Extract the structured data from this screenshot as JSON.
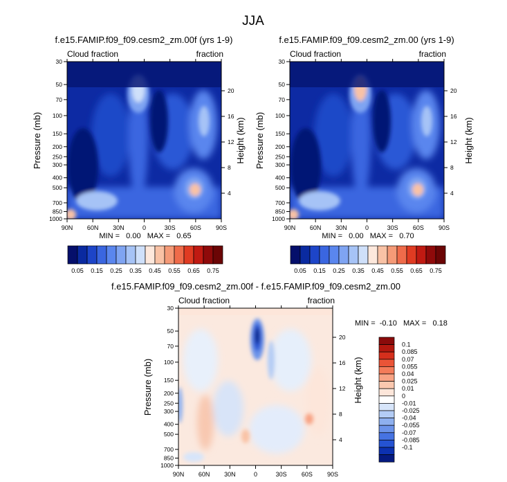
{
  "title": "JJA",
  "panels": [
    {
      "title": "f.e15.FAMIP.f09_f09.cesm2_zm.00f (yrs 1-9)",
      "left_label": "Cloud fraction",
      "right_label": "fraction",
      "stats": "MIN =   0.00   MAX =   0.65"
    },
    {
      "title": "f.e15.FAMIP.f09_f09.cesm2_zm.00 (yrs 1-9)",
      "left_label": "Cloud fraction",
      "right_label": "fraction",
      "stats": "MIN =   0.00   MAX =   0.70"
    },
    {
      "title": "f.e15.FAMIP.f09_f09.cesm2_zm.00f - f.e15.FAMIP.f09_f09.cesm2_zm.00",
      "left_label": "Cloud fraction",
      "right_label": "fraction",
      "stats": "MIN =  -0.10   MAX =   0.18"
    }
  ],
  "colorbar_abs": {
    "labels": [
      "0.05",
      "0.15",
      "0.25",
      "0.35",
      "0.45",
      "0.55",
      "0.65",
      "0.75"
    ],
    "colors": [
      "#050f6b",
      "#0a2aa0",
      "#1d45c8",
      "#3a66e0",
      "#5a86ee",
      "#7fa4f2",
      "#a6c3f6",
      "#cfe0fa",
      "#fde8dc",
      "#f9c2a5",
      "#f59a77",
      "#ef6b4a",
      "#e03b22",
      "#c01a12",
      "#8f0a0a",
      "#6b0505"
    ]
  },
  "colorbar_diff": {
    "labels": [
      "0.1",
      "0.085",
      "0.07",
      "0.055",
      "0.04",
      "0.025",
      "0.01",
      "0",
      "-0.01",
      "-0.025",
      "-0.04",
      "-0.055",
      "-0.07",
      "-0.085",
      "-0.1"
    ],
    "colors": [
      "#8a0b0b",
      "#b3180f",
      "#d52f1c",
      "#ea5437",
      "#f47c5a",
      "#f8a384",
      "#fbc8af",
      "#fde6da",
      "#ffffff",
      "#d7e5fa",
      "#b3ccf5",
      "#8eb0ef",
      "#6b93ea",
      "#4673e2",
      "#2553d2",
      "#0c31b0",
      "#051a80"
    ]
  },
  "chart_data": [
    {
      "type": "heatmap",
      "title": "f.e15.FAMIP.f09_f09.cesm2_zm.00f (yrs 1-9)",
      "variable": "Cloud fraction",
      "units": "fraction",
      "season": "JJA",
      "x": [
        90,
        60,
        30,
        0,
        -30,
        -60,
        -90
      ],
      "x_ticks": [
        "90N",
        "60N",
        "30N",
        "0",
        "30S",
        "60S",
        "90S"
      ],
      "y_pressure_ticks": [
        1000,
        850,
        700,
        500,
        400,
        300,
        250,
        200,
        150,
        100,
        70,
        50,
        30
      ],
      "y_height_ticks": [
        4,
        8,
        12,
        16,
        20
      ],
      "xlabel": "",
      "ylabel": "Pressure (mb)",
      "ylabel_right": "Height (km)",
      "min": 0.0,
      "max": 0.65
    },
    {
      "type": "heatmap",
      "title": "f.e15.FAMIP.f09_f09.cesm2_zm.00 (yrs 1-9)",
      "variable": "Cloud fraction",
      "units": "fraction",
      "season": "JJA",
      "x": [
        90,
        60,
        30,
        0,
        -30,
        -60,
        -90
      ],
      "x_ticks": [
        "90N",
        "60N",
        "30N",
        "0",
        "30S",
        "60S",
        "90S"
      ],
      "y_pressure_ticks": [
        1000,
        850,
        700,
        500,
        400,
        300,
        250,
        200,
        150,
        100,
        70,
        50,
        30
      ],
      "y_height_ticks": [
        4,
        8,
        12,
        16,
        20
      ],
      "xlabel": "",
      "ylabel": "Pressure (mb)",
      "ylabel_right": "Height (km)",
      "min": 0.0,
      "max": 0.7
    },
    {
      "type": "heatmap",
      "title": "f.e15.FAMIP.f09_f09.cesm2_zm.00f - f.e15.FAMIP.f09_f09.cesm2_zm.00",
      "variable": "Cloud fraction",
      "units": "fraction",
      "season": "JJA",
      "x": [
        90,
        60,
        30,
        0,
        -30,
        -60,
        -90
      ],
      "x_ticks": [
        "90N",
        "60N",
        "30N",
        "0",
        "30S",
        "60S",
        "90S"
      ],
      "y_pressure_ticks": [
        1000,
        850,
        700,
        500,
        400,
        300,
        250,
        200,
        150,
        100,
        70,
        50,
        30
      ],
      "y_height_ticks": [
        4,
        8,
        12,
        16,
        20
      ],
      "xlabel": "",
      "ylabel": "Pressure (mb)",
      "ylabel_right": "Height (km)",
      "min": -0.1,
      "max": 0.18
    }
  ]
}
